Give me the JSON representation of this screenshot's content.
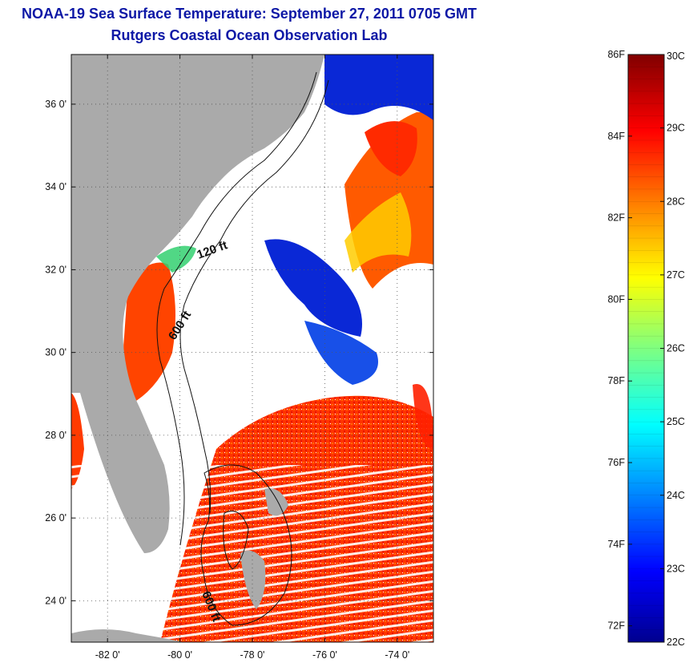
{
  "header": {
    "title": "NOAA-19 Sea Surface Temperature:  September 27, 2011 0705 GMT",
    "subtitle": "Rutgers Coastal Ocean Observation Lab"
  },
  "map": {
    "lat_range": [
      23,
      37.2
    ],
    "lon_range": [
      -83,
      -73
    ],
    "lat_ticks": [
      {
        "value": 24,
        "label": "24 0'"
      },
      {
        "value": 26,
        "label": "26 0'"
      },
      {
        "value": 28,
        "label": "28 0'"
      },
      {
        "value": 30,
        "label": "30 0'"
      },
      {
        "value": 32,
        "label": "32 0'"
      },
      {
        "value": 34,
        "label": "34 0'"
      },
      {
        "value": 36,
        "label": "36 0'"
      }
    ],
    "lon_ticks": [
      {
        "value": -82,
        "label": "-82 0'"
      },
      {
        "value": -80,
        "label": "-80 0'"
      },
      {
        "value": -78,
        "label": "-78 0'"
      },
      {
        "value": -76,
        "label": "-76 0'"
      },
      {
        "value": -74,
        "label": "-74 0'"
      }
    ],
    "grid": "dotted",
    "contour_labels": [
      "120 ft",
      "600 ft",
      "600 ft"
    ],
    "colors": {
      "land": "#aaaaaa",
      "no_data": "#ffffff",
      "contour": "#111111"
    }
  },
  "colorbar": {
    "min_c": 22,
    "max_c": 30,
    "colormap": "jet",
    "celsius_ticks": [
      {
        "value": 22,
        "label": "22C"
      },
      {
        "value": 23,
        "label": "23C"
      },
      {
        "value": 24,
        "label": "24C"
      },
      {
        "value": 25,
        "label": "25C"
      },
      {
        "value": 26,
        "label": "26C"
      },
      {
        "value": 27,
        "label": "27C"
      },
      {
        "value": 28,
        "label": "28C"
      },
      {
        "value": 29,
        "label": "29C"
      },
      {
        "value": 30,
        "label": "30C"
      }
    ],
    "fahrenheit_ticks": [
      {
        "value": 72,
        "label": "72F"
      },
      {
        "value": 74,
        "label": "74F"
      },
      {
        "value": 76,
        "label": "76F"
      },
      {
        "value": 78,
        "label": "78F"
      },
      {
        "value": 80,
        "label": "80F"
      },
      {
        "value": 82,
        "label": "82F"
      },
      {
        "value": 84,
        "label": "84F"
      },
      {
        "value": 86,
        "label": "86F"
      }
    ]
  }
}
